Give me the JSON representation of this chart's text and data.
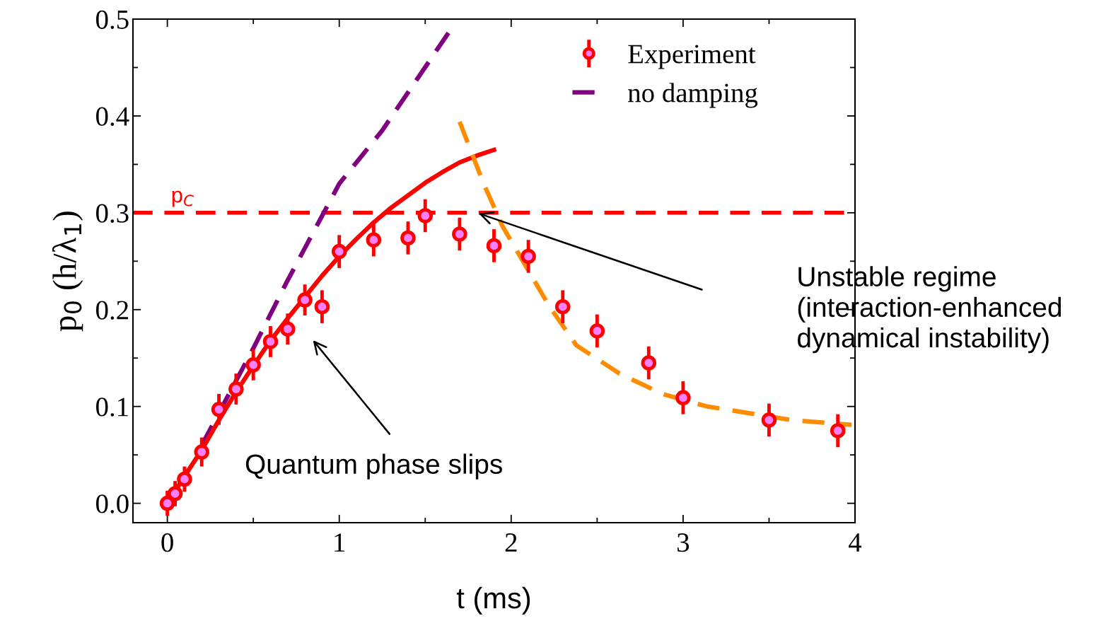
{
  "chart_data": {
    "type": "scatter",
    "xlabel": "t (ms)",
    "ylabel": "p$_{0}$ (h/λ$_{1}$)",
    "xlim": [
      -0.2,
      4
    ],
    "xticks": [
      0,
      1,
      2,
      3,
      4
    ],
    "ylim": [
      -0.02,
      0.5
    ],
    "yticks": [
      {
        "value": 0,
        "label": "0.0"
      },
      0.1,
      0.2,
      0.3,
      0.4,
      0.5
    ],
    "grid": false,
    "legend": "top right",
    "series": [
      {
        "name": "Experiment",
        "marker": "circle",
        "color": "#ff0000",
        "x": [
          0,
          0.045,
          0.1,
          0.2,
          0.3,
          0.4,
          0.5,
          0.6,
          0.7,
          0.8,
          0.9,
          1.0,
          1.2,
          1.4,
          1.5,
          1.7,
          1.9,
          2.1,
          2.3,
          2.5,
          2.8,
          3.0,
          3.5,
          3.9
        ],
        "values": [
          0,
          0.01,
          0.025,
          0.053,
          0.097,
          0.118,
          0.143,
          0.167,
          0.18,
          0.21,
          0.203,
          0.26,
          0.272,
          0.274,
          0.297,
          0.278,
          0.266,
          0.255,
          0.203,
          0.178,
          0.145,
          0.109,
          0.086,
          0.075
        ],
        "errors": [
          0.013,
          0.013,
          0.013,
          0.015,
          0.016,
          0.016,
          0.016,
          0.016,
          0.016,
          0.016,
          0.017,
          0.017,
          0.017,
          0.017,
          0.017,
          0.017,
          0.017,
          0.017,
          0.017,
          0.017,
          0.017,
          0.017,
          0.017,
          0.017
        ]
      },
      {
        "name": "no damping",
        "type": "line",
        "marker": "none",
        "line_style": "dashed",
        "color": "#800080",
        "x": [
          0.2,
          0.5,
          0.69,
          1.0,
          1.25,
          1.64
        ],
        "values": [
          0.06,
          0.16,
          0.227,
          0.33,
          0.385,
          0.487
        ]
      },
      {
        "type": "line",
        "marker": "none",
        "line_style": "solid",
        "color": "#ff0000",
        "x": [
          0,
          0.1,
          0.2,
          0.3,
          0.4,
          0.5,
          0.6,
          0.7,
          0.8,
          0.9,
          1.0,
          1.1,
          1.2,
          1.3,
          1.4,
          1.5,
          1.6,
          1.7,
          1.8,
          1.9
        ],
        "values": [
          0,
          0.028,
          0.055,
          0.086,
          0.115,
          0.142,
          0.168,
          0.191,
          0.213,
          0.235,
          0.255,
          0.273,
          0.29,
          0.305,
          0.318,
          0.331,
          0.342,
          0.352,
          0.359,
          0.365
        ]
      },
      {
        "type": "line",
        "marker": "none",
        "line_style": "dashed",
        "color": "#ff8c00",
        "x": [
          1.7,
          1.84,
          1.95,
          2.22,
          2.38,
          2.63,
          2.88,
          3.14,
          3.63,
          3.98
        ],
        "values": [
          0.394,
          0.33,
          0.286,
          0.204,
          0.163,
          0.134,
          0.113,
          0.1,
          0.086,
          0.081
        ]
      }
    ],
    "ref_lines": [
      {
        "axis": "y",
        "value": 0.3,
        "label": "p$_{C}$",
        "color": "#ff0000",
        "line_style": "dashed"
      }
    ],
    "annotations": [
      "Quantum phase slips",
      "Unstable regime\n(interaction-enhanced\ndynamical instability)"
    ]
  }
}
